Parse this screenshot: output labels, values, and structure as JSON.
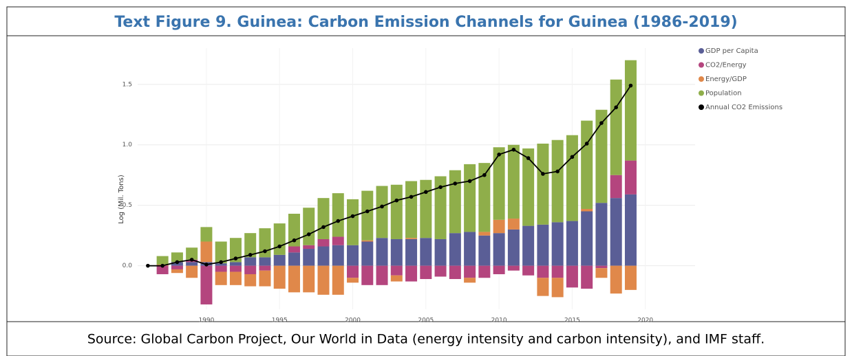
{
  "chart_data": {
    "type": "bar",
    "title": "Text Figure 9. Guinea: Carbon Emission Channels for Guinea (1986-2019)",
    "y_label": "Log (Mil. Tons)",
    "source": "Source: Global Carbon Project, Our World in Data (energy intensity and carbon intensity), and IMF staff.",
    "x": [
      1986,
      1987,
      1988,
      1989,
      1990,
      1991,
      1992,
      1993,
      1994,
      1995,
      1996,
      1997,
      1998,
      1999,
      2000,
      2001,
      2002,
      2003,
      2004,
      2005,
      2006,
      2007,
      2008,
      2009,
      2010,
      2011,
      2012,
      2013,
      2014,
      2015,
      2016,
      2017,
      2018,
      2019
    ],
    "xlim": [
      1985.3,
      2023.4
    ],
    "xticks": [
      1990,
      1995,
      2000,
      2005,
      2010,
      2015,
      2020
    ],
    "ylim": [
      -0.36,
      1.8
    ],
    "yticks": [
      {
        "value": 0,
        "label": "0.0"
      },
      {
        "value": 0.5,
        "label": "0.5"
      },
      {
        "value": 1,
        "label": "1.0"
      },
      {
        "value": 1.5,
        "label": "1.5"
      }
    ],
    "grid": true,
    "stacked": true,
    "legend": "top-right",
    "series": [
      {
        "name": "GDP per Capita",
        "color": "#5a5e96",
        "values": [
          0,
          0,
          0.03,
          0.03,
          0.03,
          0.02,
          0.03,
          0.07,
          0.07,
          0.09,
          0.11,
          0.14,
          0.16,
          0.17,
          0.17,
          0.2,
          0.23,
          0.22,
          0.22,
          0.23,
          0.22,
          0.27,
          0.28,
          0.25,
          0.27,
          0.3,
          0.33,
          0.34,
          0.36,
          0.37,
          0.45,
          0.52,
          0.56,
          0.59
        ]
      },
      {
        "name": "CO2/Energy",
        "color": "#b4457e",
        "values": [
          0,
          -0.07,
          -0.03,
          0.02,
          -0.32,
          -0.05,
          -0.05,
          -0.07,
          -0.04,
          0,
          0.05,
          0.03,
          0.06,
          0.07,
          -0.1,
          -0.16,
          -0.16,
          -0.08,
          -0.13,
          -0.11,
          -0.09,
          -0.11,
          -0.1,
          -0.1,
          -0.07,
          -0.04,
          -0.08,
          -0.1,
          -0.1,
          -0.18,
          -0.19,
          -0.02,
          0.19,
          0.28
        ]
      },
      {
        "name": "Energy/GDP",
        "color": "#e0884a",
        "values": [
          0,
          0.01,
          -0.03,
          -0.1,
          0.17,
          -0.11,
          -0.11,
          -0.1,
          -0.13,
          -0.19,
          -0.22,
          -0.22,
          -0.24,
          -0.24,
          -0.04,
          0.01,
          0,
          -0.05,
          0.01,
          0,
          0,
          0,
          -0.04,
          0.03,
          0.11,
          0.09,
          0,
          -0.15,
          -0.16,
          0,
          0.02,
          -0.08,
          -0.23,
          -0.2
        ]
      },
      {
        "name": "Population",
        "color": "#8fae4a",
        "values": [
          0,
          0.07,
          0.08,
          0.1,
          0.12,
          0.18,
          0.2,
          0.2,
          0.24,
          0.26,
          0.27,
          0.31,
          0.34,
          0.36,
          0.38,
          0.41,
          0.43,
          0.45,
          0.47,
          0.48,
          0.52,
          0.52,
          0.56,
          0.57,
          0.6,
          0.61,
          0.64,
          0.67,
          0.68,
          0.71,
          0.73,
          0.77,
          0.79,
          0.83
        ]
      },
      {
        "name": "Annual CO2 Emissions",
        "type": "line",
        "color": "#000000",
        "values": [
          0,
          0,
          0.03,
          0.05,
          0.01,
          0.03,
          0.06,
          0.09,
          0.12,
          0.16,
          0.21,
          0.26,
          0.32,
          0.37,
          0.41,
          0.45,
          0.49,
          0.54,
          0.57,
          0.61,
          0.65,
          0.68,
          0.7,
          0.75,
          0.92,
          0.96,
          0.89,
          0.76,
          0.78,
          0.9,
          1.01,
          1.18,
          1.31,
          1.49
        ]
      }
    ]
  }
}
